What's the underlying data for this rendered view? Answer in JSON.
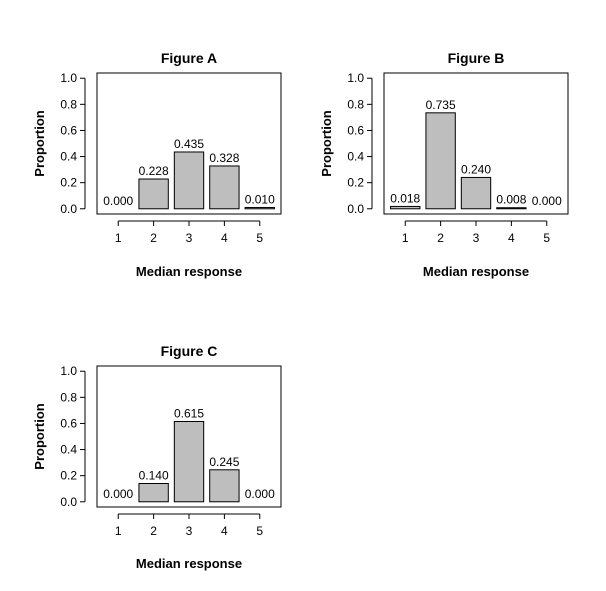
{
  "colors": {
    "bar_fill": "#bebebe",
    "bar_stroke": "#000000",
    "frame": "#000000",
    "background": "#ffffff"
  },
  "chart_data": [
    {
      "type": "bar",
      "title": "Figure A",
      "xlabel": "Median response",
      "ylabel": "Proportion",
      "categories": [
        "1",
        "2",
        "3",
        "4",
        "5"
      ],
      "values": [
        0.0,
        0.228,
        0.435,
        0.328,
        0.01
      ],
      "value_labels": [
        "0.000",
        "0.228",
        "0.435",
        "0.328",
        "0.010"
      ],
      "yticks": [
        "0.0",
        "0.2",
        "0.4",
        "0.6",
        "0.8",
        "1.0"
      ],
      "ylim": [
        0,
        1
      ],
      "grid": false
    },
    {
      "type": "bar",
      "title": "Figure B",
      "xlabel": "Median response",
      "ylabel": "Proportion",
      "categories": [
        "1",
        "2",
        "3",
        "4",
        "5"
      ],
      "values": [
        0.018,
        0.735,
        0.24,
        0.008,
        0.0
      ],
      "value_labels": [
        "0.018",
        "0.735",
        "0.240",
        "0.008",
        "0.000"
      ],
      "yticks": [
        "0.0",
        "0.2",
        "0.4",
        "0.6",
        "0.8",
        "1.0"
      ],
      "ylim": [
        0,
        1
      ],
      "grid": false
    },
    {
      "type": "bar",
      "title": "Figure C",
      "xlabel": "Median response",
      "ylabel": "Proportion",
      "categories": [
        "1",
        "2",
        "3",
        "4",
        "5"
      ],
      "values": [
        0.0,
        0.14,
        0.615,
        0.245,
        0.0
      ],
      "value_labels": [
        "0.000",
        "0.140",
        "0.615",
        "0.245",
        "0.000"
      ],
      "yticks": [
        "0.0",
        "0.2",
        "0.4",
        "0.6",
        "0.8",
        "1.0"
      ],
      "ylim": [
        0,
        1
      ],
      "grid": false
    }
  ]
}
